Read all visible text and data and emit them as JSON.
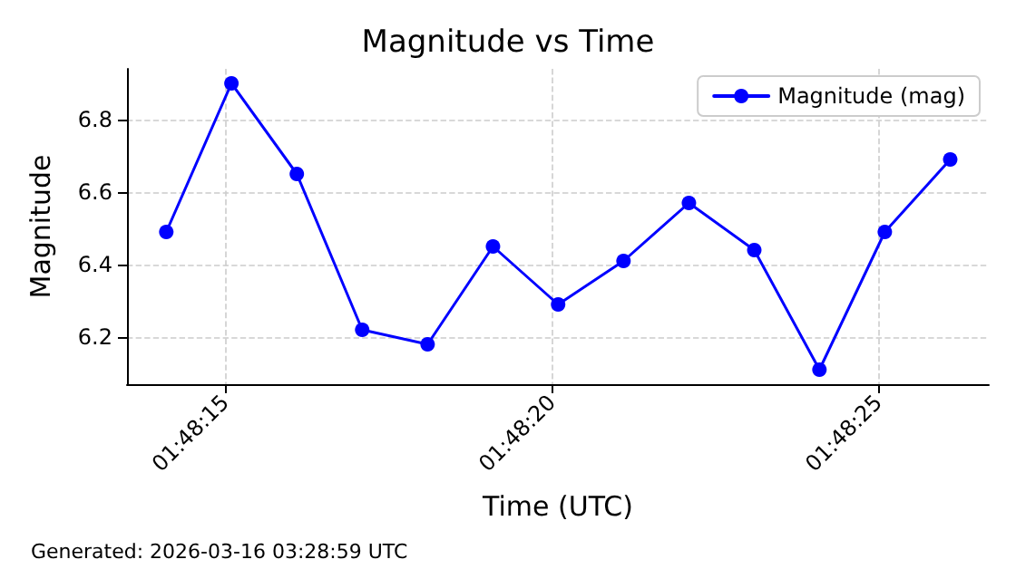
{
  "chart_data": {
    "type": "line",
    "title": "Magnitude vs Time",
    "xlabel": "Time (UTC)",
    "ylabel": "Magnitude",
    "x": [
      1.803917,
      1.804194,
      1.804472,
      1.80475,
      1.805028,
      1.805306,
      1.805583,
      1.805861,
      1.806139,
      1.806417,
      1.806694,
      1.806972,
      1.80725
    ],
    "series": [
      {
        "name": "Magnitude (mag)",
        "color": "#0000ff",
        "values": [
          6.49,
          6.9,
          6.65,
          6.22,
          6.18,
          6.45,
          6.29,
          6.41,
          6.57,
          6.44,
          6.11,
          6.49,
          6.69
        ]
      }
    ],
    "xlim": [
      1.80375,
      1.807414
    ],
    "xticks": [
      {
        "value": 1.8041667,
        "label": "01:48:15"
      },
      {
        "value": 1.8055556,
        "label": "01:48:20"
      },
      {
        "value": 1.8069444,
        "label": "01:48:25"
      }
    ],
    "ylim": [
      6.07,
      6.94
    ],
    "yticks": [
      6.2,
      6.4,
      6.6,
      6.8
    ],
    "grid": true,
    "legend": "top right",
    "marker": "circle",
    "line_style": "solid",
    "annotations": [
      "Generated: 2026-03-16 03:28:59 UTC"
    ]
  }
}
